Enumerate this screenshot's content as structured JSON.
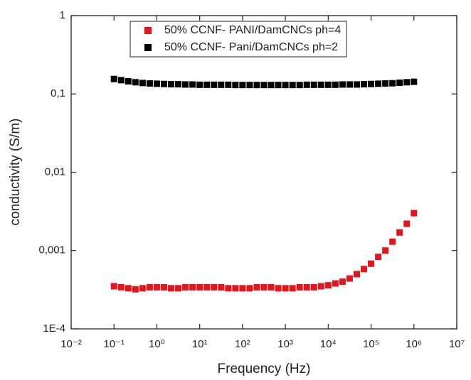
{
  "chart_data": {
    "type": "scatter",
    "xlabel": "Frequency (Hz)",
    "ylabel": "conductivity (S/m)",
    "xscale": "log",
    "yscale": "log",
    "xlim": [
      0.01,
      10000000
    ],
    "ylim": [
      0.0001,
      1
    ],
    "xticks": [
      {
        "value": 0.01,
        "label": "10⁻²"
      },
      {
        "value": 0.1,
        "label": "10⁻¹"
      },
      {
        "value": 1,
        "label": "10⁰"
      },
      {
        "value": 10,
        "label": "10¹"
      },
      {
        "value": 100,
        "label": "10²"
      },
      {
        "value": 1000,
        "label": "10³"
      },
      {
        "value": 10000,
        "label": "10⁴"
      },
      {
        "value": 100000,
        "label": "10⁵"
      },
      {
        "value": 1000000,
        "label": "10⁶"
      },
      {
        "value": 10000000,
        "label": "10⁷"
      }
    ],
    "yticks": [
      {
        "value": 0.0001,
        "label": "1E-4"
      },
      {
        "value": 0.001,
        "label": "0,001"
      },
      {
        "value": 0.01,
        "label": "0,01"
      },
      {
        "value": 0.1,
        "label": "0,1"
      },
      1
    ],
    "legend": "upper center",
    "x": [
      0.1,
      0.1468,
      0.2154,
      0.3162,
      0.4642,
      0.6813,
      1,
      1.468,
      2.154,
      3.162,
      4.642,
      6.813,
      10,
      14.68,
      21.54,
      31.62,
      46.42,
      68.13,
      100,
      146.8,
      215.4,
      316.2,
      464.2,
      681.3,
      1000,
      1468,
      2154,
      3162,
      4642,
      6813,
      10000,
      14680,
      21540,
      31620,
      46420,
      68130,
      100000,
      146800,
      215400,
      316200,
      464200,
      681300,
      1000000
    ],
    "series": [
      {
        "name": "50% CCNF- PANI/DamCNCs ph=4",
        "color": "#e8141c",
        "values": [
          0.00035,
          0.00034,
          0.00033,
          0.00032,
          0.00033,
          0.00034,
          0.00034,
          0.00034,
          0.00033,
          0.00033,
          0.00034,
          0.00034,
          0.00034,
          0.00034,
          0.00034,
          0.00034,
          0.00033,
          0.00033,
          0.00033,
          0.00033,
          0.00034,
          0.00034,
          0.00034,
          0.00033,
          0.00033,
          0.00033,
          0.00034,
          0.00034,
          0.00034,
          0.00035,
          0.00036,
          0.00038,
          0.0004,
          0.00044,
          0.0005,
          0.00058,
          0.00068,
          0.00083,
          0.001,
          0.0013,
          0.0017,
          0.0022,
          0.003
        ]
      },
      {
        "name": "50% CCNF- Pani/DamCNCs  ph=2",
        "color": "#000000",
        "values": [
          0.155,
          0.15,
          0.145,
          0.141,
          0.138,
          0.136,
          0.135,
          0.134,
          0.133,
          0.133,
          0.132,
          0.132,
          0.131,
          0.131,
          0.131,
          0.131,
          0.131,
          0.13,
          0.13,
          0.13,
          0.13,
          0.13,
          0.13,
          0.13,
          0.13,
          0.13,
          0.13,
          0.131,
          0.131,
          0.131,
          0.131,
          0.131,
          0.132,
          0.132,
          0.132,
          0.133,
          0.134,
          0.135,
          0.136,
          0.137,
          0.139,
          0.141,
          0.143
        ]
      }
    ]
  }
}
